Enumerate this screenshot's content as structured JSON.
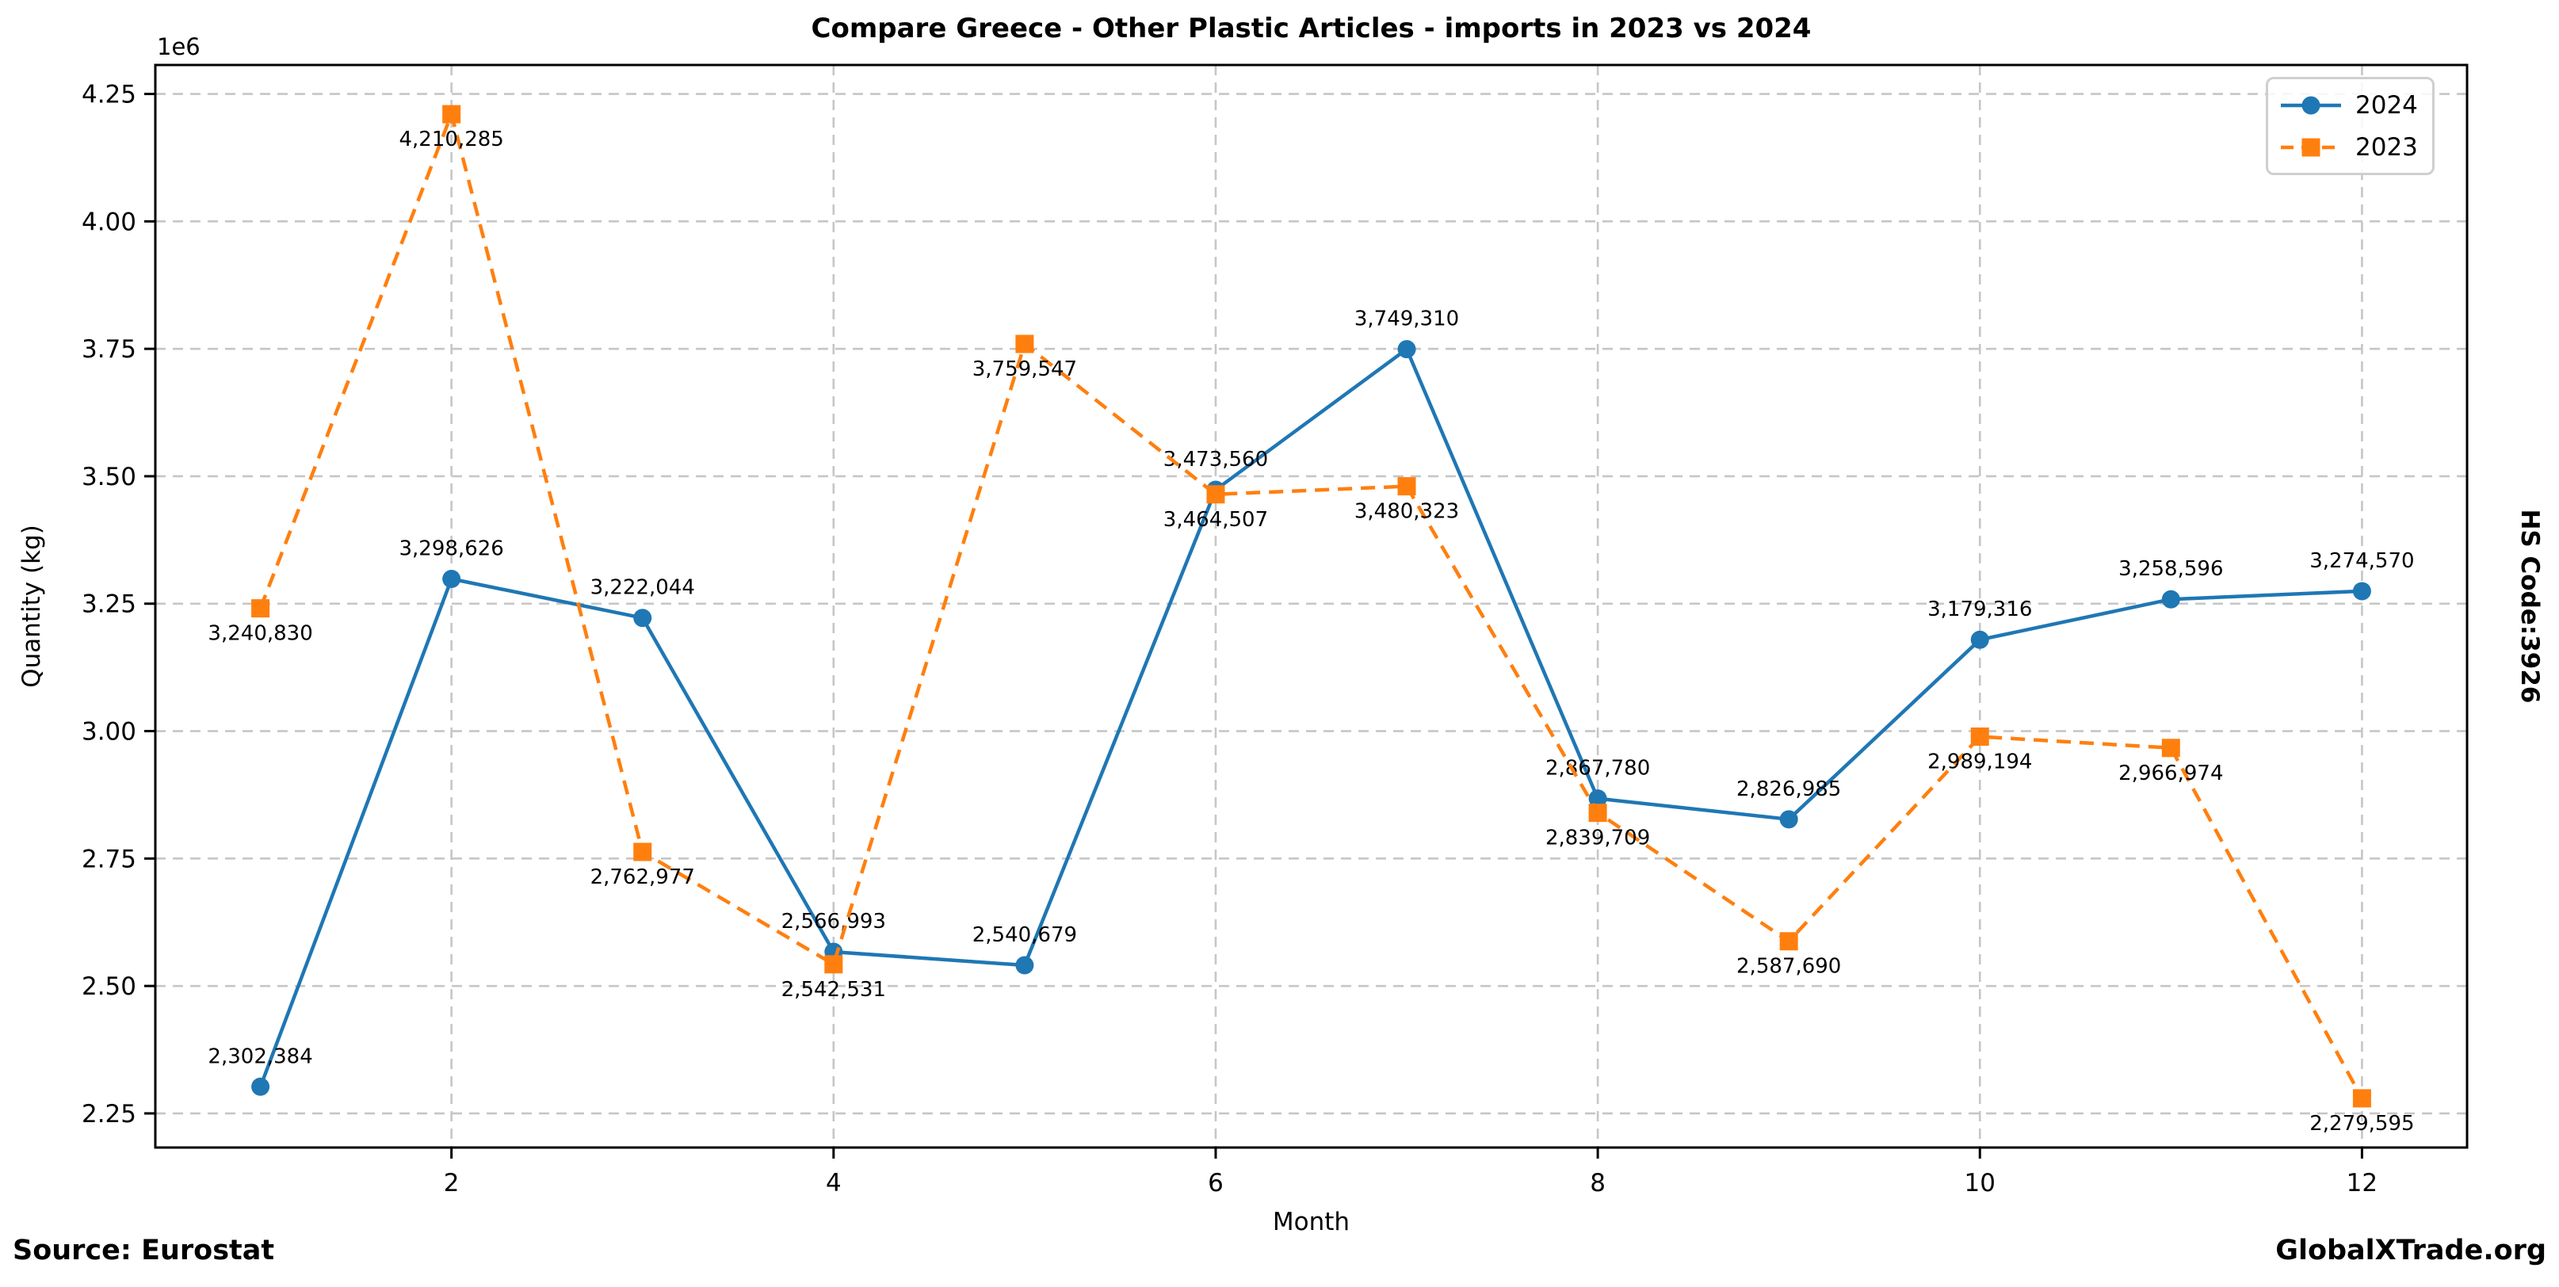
{
  "figure": {
    "offset_text": "1e6",
    "source_note": "Source: Eurostat",
    "brand": "GlobalXTrade.org",
    "hs_code_label": "HS Code:3926"
  },
  "chart_data": {
    "type": "line",
    "title": "Compare Greece - Other Plastic Articles - imports in 2023 vs 2024",
    "xlabel": "Month",
    "ylabel": "Quantity (kg)",
    "y_offset_label": "1e6",
    "x": [
      1,
      2,
      3,
      4,
      5,
      6,
      7,
      8,
      9,
      10,
      11,
      12
    ],
    "series": [
      {
        "name": "2024",
        "color": "#1f77b4",
        "line_style": "solid",
        "marker": "circle",
        "values": [
          2302384,
          3298626,
          3222044,
          2566993,
          2540679,
          3473560,
          3749310,
          2867780,
          2826985,
          3179316,
          3258596,
          3274570
        ]
      },
      {
        "name": "2023",
        "color": "#ff7f0e",
        "line_style": "dashed",
        "marker": "square",
        "values": [
          3240830,
          4210285,
          2762977,
          2542531,
          3759547,
          3464507,
          3480323,
          2839709,
          2587690,
          2989194,
          2966974,
          2279595
        ]
      }
    ],
    "xticks": [
      2,
      4,
      6,
      8,
      10,
      12
    ],
    "yticks_millions": [
      "2.25",
      "2.50",
      "2.75",
      "3.00",
      "3.25",
      "3.50",
      "3.75",
      "4.00",
      "4.25"
    ],
    "xlim": [
      0.45,
      12.55
    ],
    "ylim": [
      2183060,
      4306820
    ],
    "grid": true,
    "legend_position": "upper right",
    "legend_entries": [
      "2024",
      "2023"
    ]
  }
}
